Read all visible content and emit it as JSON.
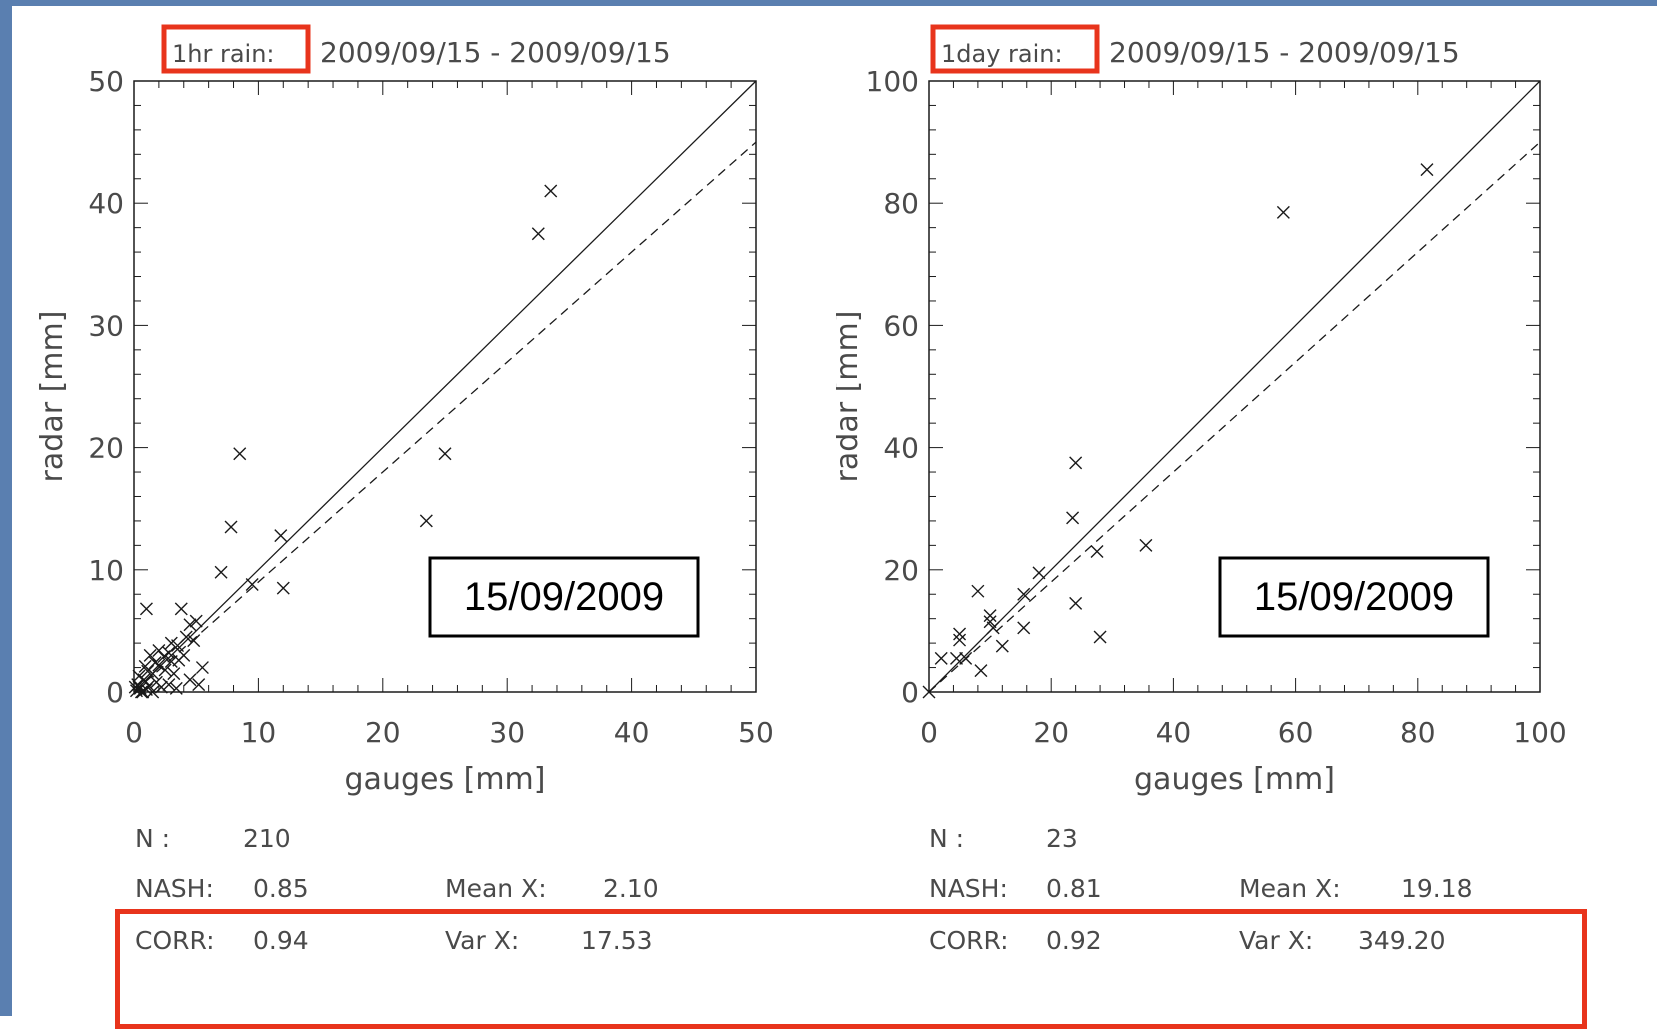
{
  "colors": {
    "frame_blue": "#5a7fb0",
    "highlight_red": "#e8341c",
    "ink": "#1a1a1a",
    "text_grey": "#4a4a4a"
  },
  "panels": [
    {
      "title_highlight": "1hr rain:",
      "title_dates": "2009/09/15 - 2009/09/15",
      "date_badge": "15/09/2009",
      "stats": {
        "n_label": "N :",
        "n_value": "210",
        "nash_label": "NASH:",
        "nash_value": "0.85",
        "corr_label": "CORR:",
        "corr_value": "0.94",
        "meanx_label": "Mean X:",
        "meanx_value": "2.10",
        "varx_label": "Var X:",
        "varx_value": "17.53"
      }
    },
    {
      "title_highlight": "1day rain:",
      "title_dates": "2009/09/15 - 2009/09/15",
      "date_badge": "15/09/2009",
      "stats": {
        "n_label": "N :",
        "n_value": "23",
        "nash_label": "NASH:",
        "nash_value": "0.81",
        "corr_label": "CORR:",
        "corr_value": "0.92",
        "meanx_label": "Mean X:",
        "meanx_value": "19.18",
        "varx_label": "Var X:",
        "varx_value": "349.20"
      }
    }
  ],
  "chart_data": [
    {
      "type": "scatter",
      "title": "1hr rain: 2009/09/15 - 2009/09/15",
      "xlabel": "gauges [mm]",
      "ylabel": "radar [mm]",
      "xlim": [
        0,
        50
      ],
      "ylim": [
        0,
        50
      ],
      "xticks": [
        0,
        10,
        20,
        30,
        40,
        50
      ],
      "yticks": [
        0,
        10,
        20,
        30,
        40,
        50
      ],
      "reference_lines": [
        {
          "style": "solid",
          "description": "1:1",
          "slope": 1.0
        },
        {
          "style": "dashed",
          "slope": 0.9
        }
      ],
      "marker": "x",
      "points": [
        [
          33.5,
          41.0
        ],
        [
          32.5,
          37.5
        ],
        [
          8.5,
          19.5
        ],
        [
          25.0,
          19.5
        ],
        [
          23.5,
          14.0
        ],
        [
          7.8,
          13.5
        ],
        [
          11.8,
          12.8
        ],
        [
          7.0,
          9.8
        ],
        [
          9.5,
          8.8
        ],
        [
          12.0,
          8.5
        ],
        [
          1.0,
          6.8
        ],
        [
          3.8,
          6.8
        ],
        [
          4.5,
          5.5
        ],
        [
          5.0,
          5.8
        ],
        [
          4.2,
          4.5
        ],
        [
          4.8,
          4.2
        ],
        [
          3.5,
          3.8
        ],
        [
          2.8,
          3.2
        ],
        [
          5.5,
          2.0
        ],
        [
          4.5,
          1.0
        ],
        [
          3.0,
          2.5
        ],
        [
          2.5,
          1.8
        ],
        [
          2.0,
          2.2
        ],
        [
          1.5,
          1.5
        ],
        [
          1.8,
          0.8
        ],
        [
          1.2,
          0.5
        ],
        [
          0.8,
          1.0
        ],
        [
          0.5,
          0.3
        ],
        [
          0.2,
          0.1
        ],
        [
          0.6,
          0.0
        ],
        [
          1.0,
          0.2
        ],
        [
          1.5,
          0.0
        ],
        [
          2.2,
          0.4
        ],
        [
          2.8,
          0.6
        ],
        [
          3.2,
          1.5
        ],
        [
          3.6,
          2.6
        ],
        [
          2.4,
          2.9
        ],
        [
          1.7,
          2.4
        ],
        [
          1.1,
          1.7
        ],
        [
          0.4,
          1.3
        ],
        [
          0.9,
          2.1
        ],
        [
          1.3,
          3.0
        ],
        [
          2.0,
          3.4
        ],
        [
          3.0,
          4.0
        ],
        [
          0.3,
          0.6
        ],
        [
          0.1,
          0.4
        ],
        [
          4.0,
          3.0
        ],
        [
          3.4,
          0.3
        ],
        [
          0.7,
          0.0
        ],
        [
          5.2,
          0.6
        ]
      ]
    },
    {
      "type": "scatter",
      "title": "1day rain: 2009/09/15 - 2009/09/15",
      "xlabel": "gauges [mm]",
      "ylabel": "radar [mm]",
      "xlim": [
        0,
        100
      ],
      "ylim": [
        0,
        100
      ],
      "xticks": [
        0,
        20,
        40,
        60,
        80,
        100
      ],
      "yticks": [
        0,
        20,
        40,
        60,
        80,
        100
      ],
      "reference_lines": [
        {
          "style": "solid",
          "description": "1:1",
          "slope": 1.0
        },
        {
          "style": "dashed",
          "slope": 0.9
        }
      ],
      "marker": "x",
      "points": [
        [
          81.5,
          85.5
        ],
        [
          58.0,
          78.5
        ],
        [
          24.0,
          37.5
        ],
        [
          23.5,
          28.5
        ],
        [
          35.5,
          24.0
        ],
        [
          27.5,
          23.0
        ],
        [
          18.0,
          19.5
        ],
        [
          15.5,
          16.0
        ],
        [
          8.0,
          16.5
        ],
        [
          24.0,
          14.5
        ],
        [
          10.0,
          12.5
        ],
        [
          10.0,
          11.5
        ],
        [
          10.5,
          10.5
        ],
        [
          15.5,
          10.5
        ],
        [
          5.0,
          9.5
        ],
        [
          5.0,
          8.5
        ],
        [
          28.0,
          9.0
        ],
        [
          12.0,
          7.5
        ],
        [
          2.0,
          5.5
        ],
        [
          4.5,
          5.5
        ],
        [
          6.0,
          5.5
        ],
        [
          8.5,
          3.5
        ],
        [
          0.0,
          0.0
        ]
      ]
    }
  ]
}
